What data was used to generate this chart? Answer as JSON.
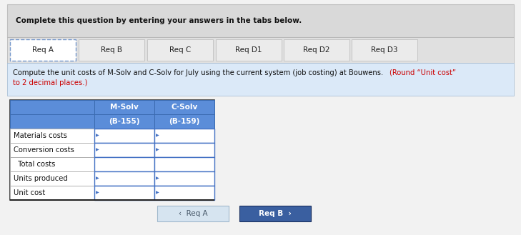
{
  "header_text": "Complete this question by entering your answers in the tabs below.",
  "tabs": [
    "Req A",
    "Req B",
    "Req C",
    "Req D1",
    "Req D2",
    "Req D3"
  ],
  "active_tab": 0,
  "instr_black": "Compute the unit costs of M-Solv and C-Solv for July using the current system (job costing) at Bouwens.",
  "instr_red1": "(Round “Unit cost”",
  "instr_red2": "to 2 decimal places.)",
  "col1_header": "M-Solv",
  "col2_header": "C-Solv",
  "col1_sub": "(B-155)",
  "col2_sub": "(B-159)",
  "row_labels": [
    "Materials costs",
    "Conversion costs",
    "  Total costs",
    "Units produced",
    "Unit cost"
  ],
  "header_bg": "#d9d9d9",
  "tab_active_bg": "#ffffff",
  "tab_inactive_bg": "#ebebeb",
  "content_bg": "#dbe9f8",
  "table_header_bg": "#5b8dd9",
  "btn_left_bg": "#d6e4f0",
  "btn_right_bg": "#3a5fa0",
  "btn_left_text": "‹  Req A",
  "btn_right_text": "Req B  ›",
  "fig_bg": "#f2f2f2",
  "outer_bg": "#f2f2f2"
}
